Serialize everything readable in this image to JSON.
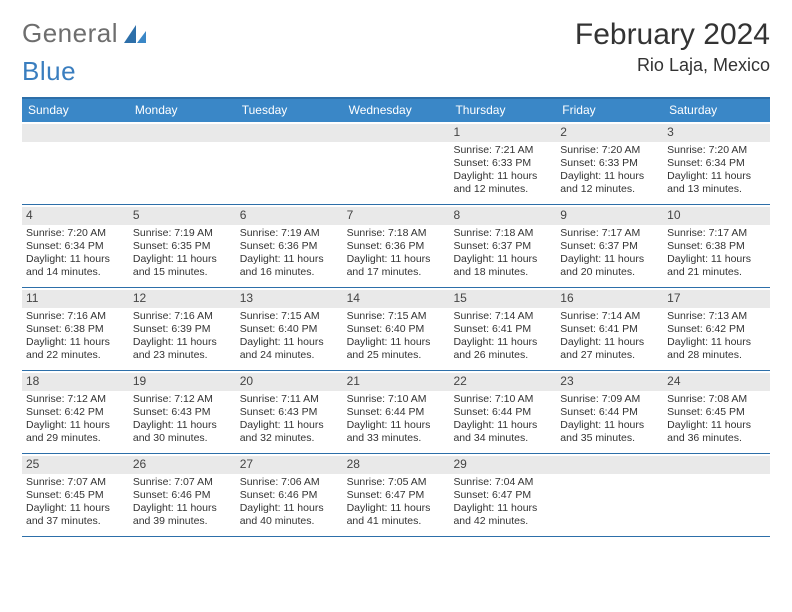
{
  "brand": {
    "part1": "General",
    "part2": "Blue"
  },
  "title": "February 2024",
  "location": "Rio Laja, Mexico",
  "colors": {
    "header_bar": "#3a87c7",
    "rule": "#2d6fa9",
    "daynum_bg": "#e9e9e9",
    "text": "#333333",
    "logo_gray": "#6e6e6e",
    "logo_blue": "#3a7ebf"
  },
  "day_names": [
    "Sunday",
    "Monday",
    "Tuesday",
    "Wednesday",
    "Thursday",
    "Friday",
    "Saturday"
  ],
  "weeks": [
    [
      {
        "n": "",
        "sr": "",
        "ss": "",
        "dl": ""
      },
      {
        "n": "",
        "sr": "",
        "ss": "",
        "dl": ""
      },
      {
        "n": "",
        "sr": "",
        "ss": "",
        "dl": ""
      },
      {
        "n": "",
        "sr": "",
        "ss": "",
        "dl": ""
      },
      {
        "n": "1",
        "sr": "Sunrise: 7:21 AM",
        "ss": "Sunset: 6:33 PM",
        "dl": "Daylight: 11 hours and 12 minutes."
      },
      {
        "n": "2",
        "sr": "Sunrise: 7:20 AM",
        "ss": "Sunset: 6:33 PM",
        "dl": "Daylight: 11 hours and 12 minutes."
      },
      {
        "n": "3",
        "sr": "Sunrise: 7:20 AM",
        "ss": "Sunset: 6:34 PM",
        "dl": "Daylight: 11 hours and 13 minutes."
      }
    ],
    [
      {
        "n": "4",
        "sr": "Sunrise: 7:20 AM",
        "ss": "Sunset: 6:34 PM",
        "dl": "Daylight: 11 hours and 14 minutes."
      },
      {
        "n": "5",
        "sr": "Sunrise: 7:19 AM",
        "ss": "Sunset: 6:35 PM",
        "dl": "Daylight: 11 hours and 15 minutes."
      },
      {
        "n": "6",
        "sr": "Sunrise: 7:19 AM",
        "ss": "Sunset: 6:36 PM",
        "dl": "Daylight: 11 hours and 16 minutes."
      },
      {
        "n": "7",
        "sr": "Sunrise: 7:18 AM",
        "ss": "Sunset: 6:36 PM",
        "dl": "Daylight: 11 hours and 17 minutes."
      },
      {
        "n": "8",
        "sr": "Sunrise: 7:18 AM",
        "ss": "Sunset: 6:37 PM",
        "dl": "Daylight: 11 hours and 18 minutes."
      },
      {
        "n": "9",
        "sr": "Sunrise: 7:17 AM",
        "ss": "Sunset: 6:37 PM",
        "dl": "Daylight: 11 hours and 20 minutes."
      },
      {
        "n": "10",
        "sr": "Sunrise: 7:17 AM",
        "ss": "Sunset: 6:38 PM",
        "dl": "Daylight: 11 hours and 21 minutes."
      }
    ],
    [
      {
        "n": "11",
        "sr": "Sunrise: 7:16 AM",
        "ss": "Sunset: 6:38 PM",
        "dl": "Daylight: 11 hours and 22 minutes."
      },
      {
        "n": "12",
        "sr": "Sunrise: 7:16 AM",
        "ss": "Sunset: 6:39 PM",
        "dl": "Daylight: 11 hours and 23 minutes."
      },
      {
        "n": "13",
        "sr": "Sunrise: 7:15 AM",
        "ss": "Sunset: 6:40 PM",
        "dl": "Daylight: 11 hours and 24 minutes."
      },
      {
        "n": "14",
        "sr": "Sunrise: 7:15 AM",
        "ss": "Sunset: 6:40 PM",
        "dl": "Daylight: 11 hours and 25 minutes."
      },
      {
        "n": "15",
        "sr": "Sunrise: 7:14 AM",
        "ss": "Sunset: 6:41 PM",
        "dl": "Daylight: 11 hours and 26 minutes."
      },
      {
        "n": "16",
        "sr": "Sunrise: 7:14 AM",
        "ss": "Sunset: 6:41 PM",
        "dl": "Daylight: 11 hours and 27 minutes."
      },
      {
        "n": "17",
        "sr": "Sunrise: 7:13 AM",
        "ss": "Sunset: 6:42 PM",
        "dl": "Daylight: 11 hours and 28 minutes."
      }
    ],
    [
      {
        "n": "18",
        "sr": "Sunrise: 7:12 AM",
        "ss": "Sunset: 6:42 PM",
        "dl": "Daylight: 11 hours and 29 minutes."
      },
      {
        "n": "19",
        "sr": "Sunrise: 7:12 AM",
        "ss": "Sunset: 6:43 PM",
        "dl": "Daylight: 11 hours and 30 minutes."
      },
      {
        "n": "20",
        "sr": "Sunrise: 7:11 AM",
        "ss": "Sunset: 6:43 PM",
        "dl": "Daylight: 11 hours and 32 minutes."
      },
      {
        "n": "21",
        "sr": "Sunrise: 7:10 AM",
        "ss": "Sunset: 6:44 PM",
        "dl": "Daylight: 11 hours and 33 minutes."
      },
      {
        "n": "22",
        "sr": "Sunrise: 7:10 AM",
        "ss": "Sunset: 6:44 PM",
        "dl": "Daylight: 11 hours and 34 minutes."
      },
      {
        "n": "23",
        "sr": "Sunrise: 7:09 AM",
        "ss": "Sunset: 6:44 PM",
        "dl": "Daylight: 11 hours and 35 minutes."
      },
      {
        "n": "24",
        "sr": "Sunrise: 7:08 AM",
        "ss": "Sunset: 6:45 PM",
        "dl": "Daylight: 11 hours and 36 minutes."
      }
    ],
    [
      {
        "n": "25",
        "sr": "Sunrise: 7:07 AM",
        "ss": "Sunset: 6:45 PM",
        "dl": "Daylight: 11 hours and 37 minutes."
      },
      {
        "n": "26",
        "sr": "Sunrise: 7:07 AM",
        "ss": "Sunset: 6:46 PM",
        "dl": "Daylight: 11 hours and 39 minutes."
      },
      {
        "n": "27",
        "sr": "Sunrise: 7:06 AM",
        "ss": "Sunset: 6:46 PM",
        "dl": "Daylight: 11 hours and 40 minutes."
      },
      {
        "n": "28",
        "sr": "Sunrise: 7:05 AM",
        "ss": "Sunset: 6:47 PM",
        "dl": "Daylight: 11 hours and 41 minutes."
      },
      {
        "n": "29",
        "sr": "Sunrise: 7:04 AM",
        "ss": "Sunset: 6:47 PM",
        "dl": "Daylight: 11 hours and 42 minutes."
      },
      {
        "n": "",
        "sr": "",
        "ss": "",
        "dl": ""
      },
      {
        "n": "",
        "sr": "",
        "ss": "",
        "dl": ""
      }
    ]
  ]
}
